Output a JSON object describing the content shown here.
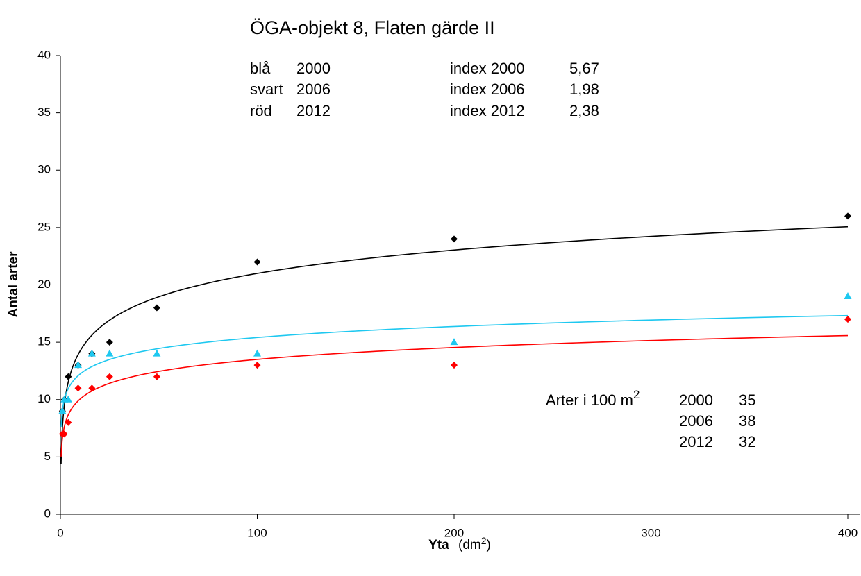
{
  "chart_data": {
    "type": "scatter",
    "title": "ÖGA-objekt 8, Flaten gärde II",
    "x_label": [
      "Yta",
      "(dm",
      "2",
      ")"
    ],
    "y_label": "Antal arter",
    "x": [
      1,
      2,
      4,
      9,
      16,
      25,
      49,
      100,
      200,
      400
    ],
    "series": [
      {
        "color": "#000000",
        "marker": "diamond",
        "values": [
          9,
          10,
          12,
          13,
          14,
          15,
          18,
          22,
          24,
          26
        ]
      },
      {
        "color": "#1ec8f0",
        "marker": "triangle",
        "values": [
          9,
          10,
          10,
          13,
          14,
          14,
          14,
          14,
          15,
          19
        ]
      },
      {
        "color": "#ff0000",
        "marker": "diamond",
        "values": [
          7,
          7,
          8,
          11,
          11,
          12,
          12,
          13,
          13,
          17
        ]
      }
    ],
    "trendline": "logarithmic",
    "xlim": [
      0,
      406
    ],
    "ylim": [
      0,
      40
    ],
    "xticks": [
      0,
      100,
      200,
      300,
      400
    ],
    "yticks": [
      0,
      5,
      10,
      15,
      20,
      25,
      30,
      35,
      40
    ],
    "grid": false,
    "annotations": {
      "index_table": [
        [
          "blå",
          "2000",
          "index 2000",
          "5,67"
        ],
        [
          "svart",
          "2006",
          "index 2006",
          "1,98"
        ],
        [
          "röd",
          "2012",
          "index 2012",
          "2,38"
        ]
      ],
      "species": {
        "label": "Arter i 100 m",
        "sup": "2",
        "rows": [
          [
            "2000",
            "35"
          ],
          [
            "2006",
            "38"
          ],
          [
            "2012",
            "32"
          ]
        ]
      }
    }
  }
}
